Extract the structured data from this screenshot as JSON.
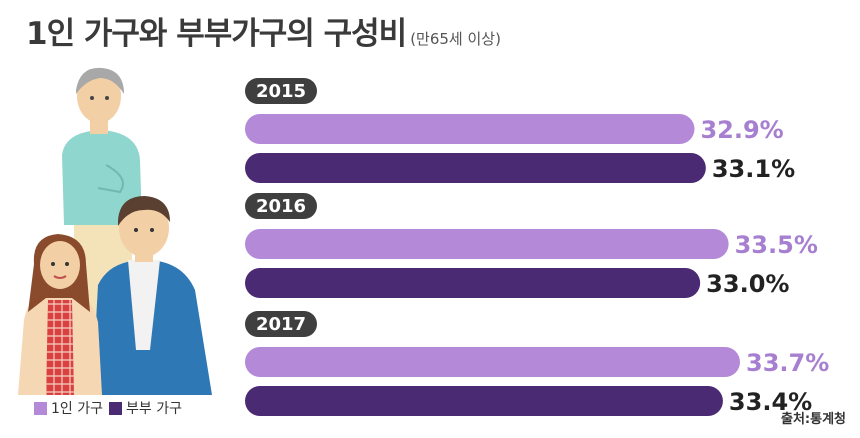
{
  "title": "1인 가구와 부부가구의 구성비",
  "subtitle": "(만65세 이상)",
  "source": "출처:통계청",
  "colors": {
    "single": "#b48ad8",
    "single_label": "#a77fd1",
    "couple": "#4a2b73",
    "year_pill": "#3f3f3f"
  },
  "chart_data": {
    "type": "bar",
    "orientation": "horizontal",
    "categories": [
      "2015",
      "2016",
      "2017"
    ],
    "series": [
      {
        "name": "1인 가구",
        "values": [
          32.9,
          33.5,
          33.7
        ],
        "labels": [
          "32.9%",
          "33.5%",
          "33.7%"
        ]
      },
      {
        "name": "부부 가구",
        "values": [
          33.1,
          33.0,
          33.4
        ],
        "labels": [
          "33.1%",
          "33.0%",
          "33.4%"
        ]
      }
    ],
    "title": "1인 가구와 부부가구의 구성비",
    "xlabel": "",
    "ylabel": "",
    "legend_position": "bottom-left",
    "grid": false
  }
}
